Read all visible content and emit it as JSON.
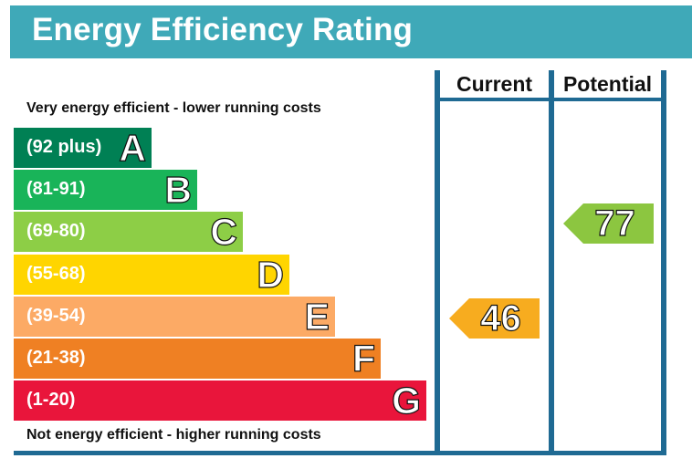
{
  "title": "Energy Efficiency Rating",
  "top_text": "Very energy efficient - lower running costs",
  "bottom_text": "Not energy efficient - higher running costs",
  "columns": {
    "current": "Current",
    "potential": "Potential"
  },
  "chart_data": {
    "type": "bar",
    "title": "Energy Efficiency Rating",
    "bands": [
      {
        "letter": "A",
        "range": "(92 plus)",
        "min": 92,
        "max": 100,
        "color": "#008054"
      },
      {
        "letter": "B",
        "range": "(81-91)",
        "min": 81,
        "max": 91,
        "color": "#19b459"
      },
      {
        "letter": "C",
        "range": "(69-80)",
        "min": 69,
        "max": 80,
        "color": "#8dce46"
      },
      {
        "letter": "D",
        "range": "(55-68)",
        "min": 55,
        "max": 68,
        "color": "#ffd500"
      },
      {
        "letter": "E",
        "range": "(39-54)",
        "min": 39,
        "max": 54,
        "color": "#fcaa65"
      },
      {
        "letter": "F",
        "range": "(21-38)",
        "min": 21,
        "max": 38,
        "color": "#ef8023"
      },
      {
        "letter": "G",
        "range": "(1-20)",
        "min": 1,
        "max": 20,
        "color": "#e9153b"
      }
    ],
    "current": {
      "value": "46",
      "band": "E",
      "color": "#f7ac1f"
    },
    "potential": {
      "value": "77",
      "band": "C",
      "color": "#8cc640"
    }
  }
}
